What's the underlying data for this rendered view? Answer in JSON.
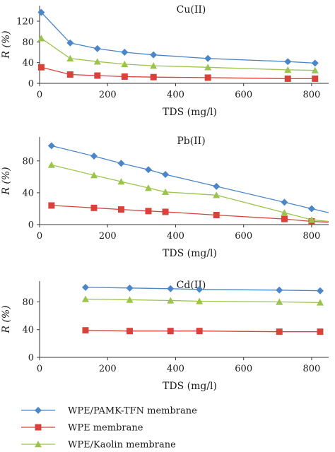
{
  "legend": [
    {
      "label": "WPE/PAMK-TFN membrane",
      "color": "#4a86c8",
      "marker": "diamond"
    },
    {
      "label": "WPE membrane",
      "color": "#d9423a",
      "marker": "square"
    },
    {
      "label": "WPE/Kaolin membrane",
      "color": "#9bc44a",
      "marker": "triangle"
    }
  ],
  "chart_data": [
    {
      "type": "line",
      "title": "Cu(II)",
      "xlabel": "TDS (mg/l)",
      "ylabel": "R (%)",
      "xlim": [
        0,
        850
      ],
      "ylim": [
        0,
        150
      ],
      "xticks": [
        0,
        200,
        400,
        600,
        800
      ],
      "yticks": [
        0,
        40,
        80,
        120
      ],
      "series": [
        {
          "name": "WPE/PAMK-TFN membrane",
          "color": "#4a86c8",
          "marker": "diamond",
          "x": [
            5,
            90,
            170,
            250,
            335,
            495,
            730,
            810
          ],
          "y": [
            137,
            78,
            67,
            60,
            55,
            48,
            42,
            39
          ]
        },
        {
          "name": "WPE membrane",
          "color": "#d9423a",
          "marker": "square",
          "x": [
            5,
            90,
            170,
            250,
            335,
            495,
            730,
            810
          ],
          "y": [
            31,
            17,
            15,
            13,
            12,
            11,
            9,
            9
          ]
        },
        {
          "name": "WPE/Kaolin membrane",
          "color": "#9bc44a",
          "marker": "triangle",
          "x": [
            5,
            90,
            170,
            250,
            335,
            495,
            730,
            810
          ],
          "y": [
            87,
            48,
            42,
            37,
            34,
            31,
            26,
            25
          ]
        }
      ]
    },
    {
      "type": "line",
      "title": "Pb(II)",
      "xlabel": "TDS (mg/l)",
      "ylabel": "R (%)",
      "xlim": [
        0,
        850
      ],
      "ylim": [
        0,
        110
      ],
      "xticks": [
        0,
        200,
        400,
        600,
        800
      ],
      "yticks": [
        0,
        40,
        80
      ],
      "series": [
        {
          "name": "WPE/PAMK-TFN membrane",
          "color": "#4a86c8",
          "marker": "diamond",
          "x": [
            35,
            160,
            240,
            320,
            370,
            520,
            720,
            800,
            850
          ],
          "y": [
            99,
            86,
            77,
            69,
            63,
            48,
            28,
            20,
            15
          ]
        },
        {
          "name": "WPE membrane",
          "color": "#d9423a",
          "marker": "square",
          "x": [
            35,
            160,
            240,
            320,
            370,
            520,
            720,
            800,
            850
          ],
          "y": [
            24,
            21,
            19,
            17,
            16,
            12,
            7,
            4,
            3
          ]
        },
        {
          "name": "WPE/Kaolin membrane",
          "color": "#9bc44a",
          "marker": "triangle",
          "x": [
            35,
            160,
            240,
            320,
            370,
            520,
            720,
            800,
            850
          ],
          "y": [
            75,
            62,
            54,
            46,
            41,
            37,
            15,
            6,
            4
          ]
        }
      ]
    },
    {
      "type": "line",
      "title": "Cd(II)",
      "xlabel": "TDS (mg/l)",
      "ylabel": "R (%)",
      "xlim": [
        0,
        850
      ],
      "ylim": [
        0,
        110
      ],
      "xticks": [
        0,
        200,
        400,
        600,
        800
      ],
      "yticks": [
        0,
        40,
        80
      ],
      "series": [
        {
          "name": "WPE/PAMK-TFN membrane",
          "color": "#4a86c8",
          "marker": "diamond",
          "x": [
            135,
            265,
            385,
            470,
            705,
            825
          ],
          "y": [
            101,
            100,
            99,
            98,
            97,
            96
          ]
        },
        {
          "name": "WPE membrane",
          "color": "#d9423a",
          "marker": "square",
          "x": [
            135,
            265,
            385,
            470,
            705,
            825
          ],
          "y": [
            39,
            38,
            38,
            38,
            37,
            37
          ]
        },
        {
          "name": "WPE/Kaolin membrane",
          "color": "#9bc44a",
          "marker": "triangle",
          "x": [
            135,
            265,
            385,
            470,
            705,
            825
          ],
          "y": [
            84,
            83,
            82,
            81,
            80,
            79
          ]
        }
      ]
    }
  ]
}
